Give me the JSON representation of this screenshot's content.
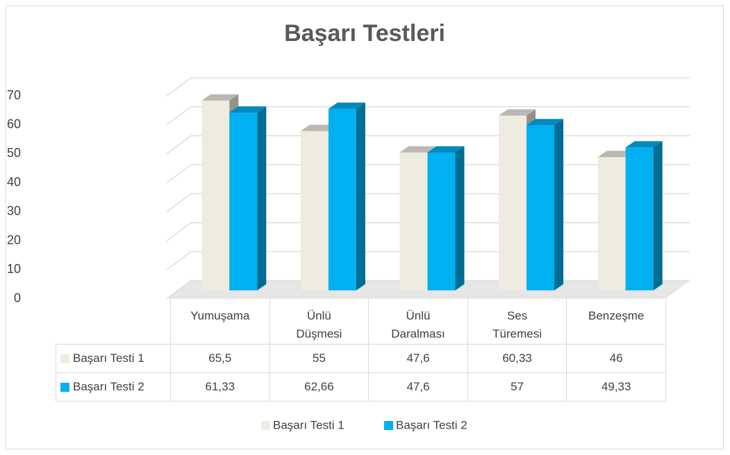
{
  "chart_data": {
    "type": "bar",
    "title": "Başarı Testleri",
    "categories": [
      "Yumuşama",
      "Ünlü Düşmesi",
      "Ünlü Daralması",
      "Ses Türemesi",
      "Benzeşme"
    ],
    "series": [
      {
        "name": "Başarı Testi 1",
        "color": "#eeece1",
        "values": [
          65.5,
          55,
          47.6,
          60.33,
          46
        ],
        "value_labels": [
          "65,5",
          "55",
          "47,6",
          "60,33",
          "46"
        ]
      },
      {
        "name": "Başarı Testi 2",
        "color": "#00b0f0",
        "values": [
          61.33,
          62.66,
          47.6,
          57,
          49.33
        ],
        "value_labels": [
          "61,33",
          "62,66",
          "47,6",
          "57",
          "49,33"
        ]
      }
    ],
    "ylim": [
      0,
      70
    ],
    "yticks": [
      0,
      10,
      20,
      30,
      40,
      50,
      60,
      70
    ],
    "grid": true,
    "legend": "bottom"
  }
}
